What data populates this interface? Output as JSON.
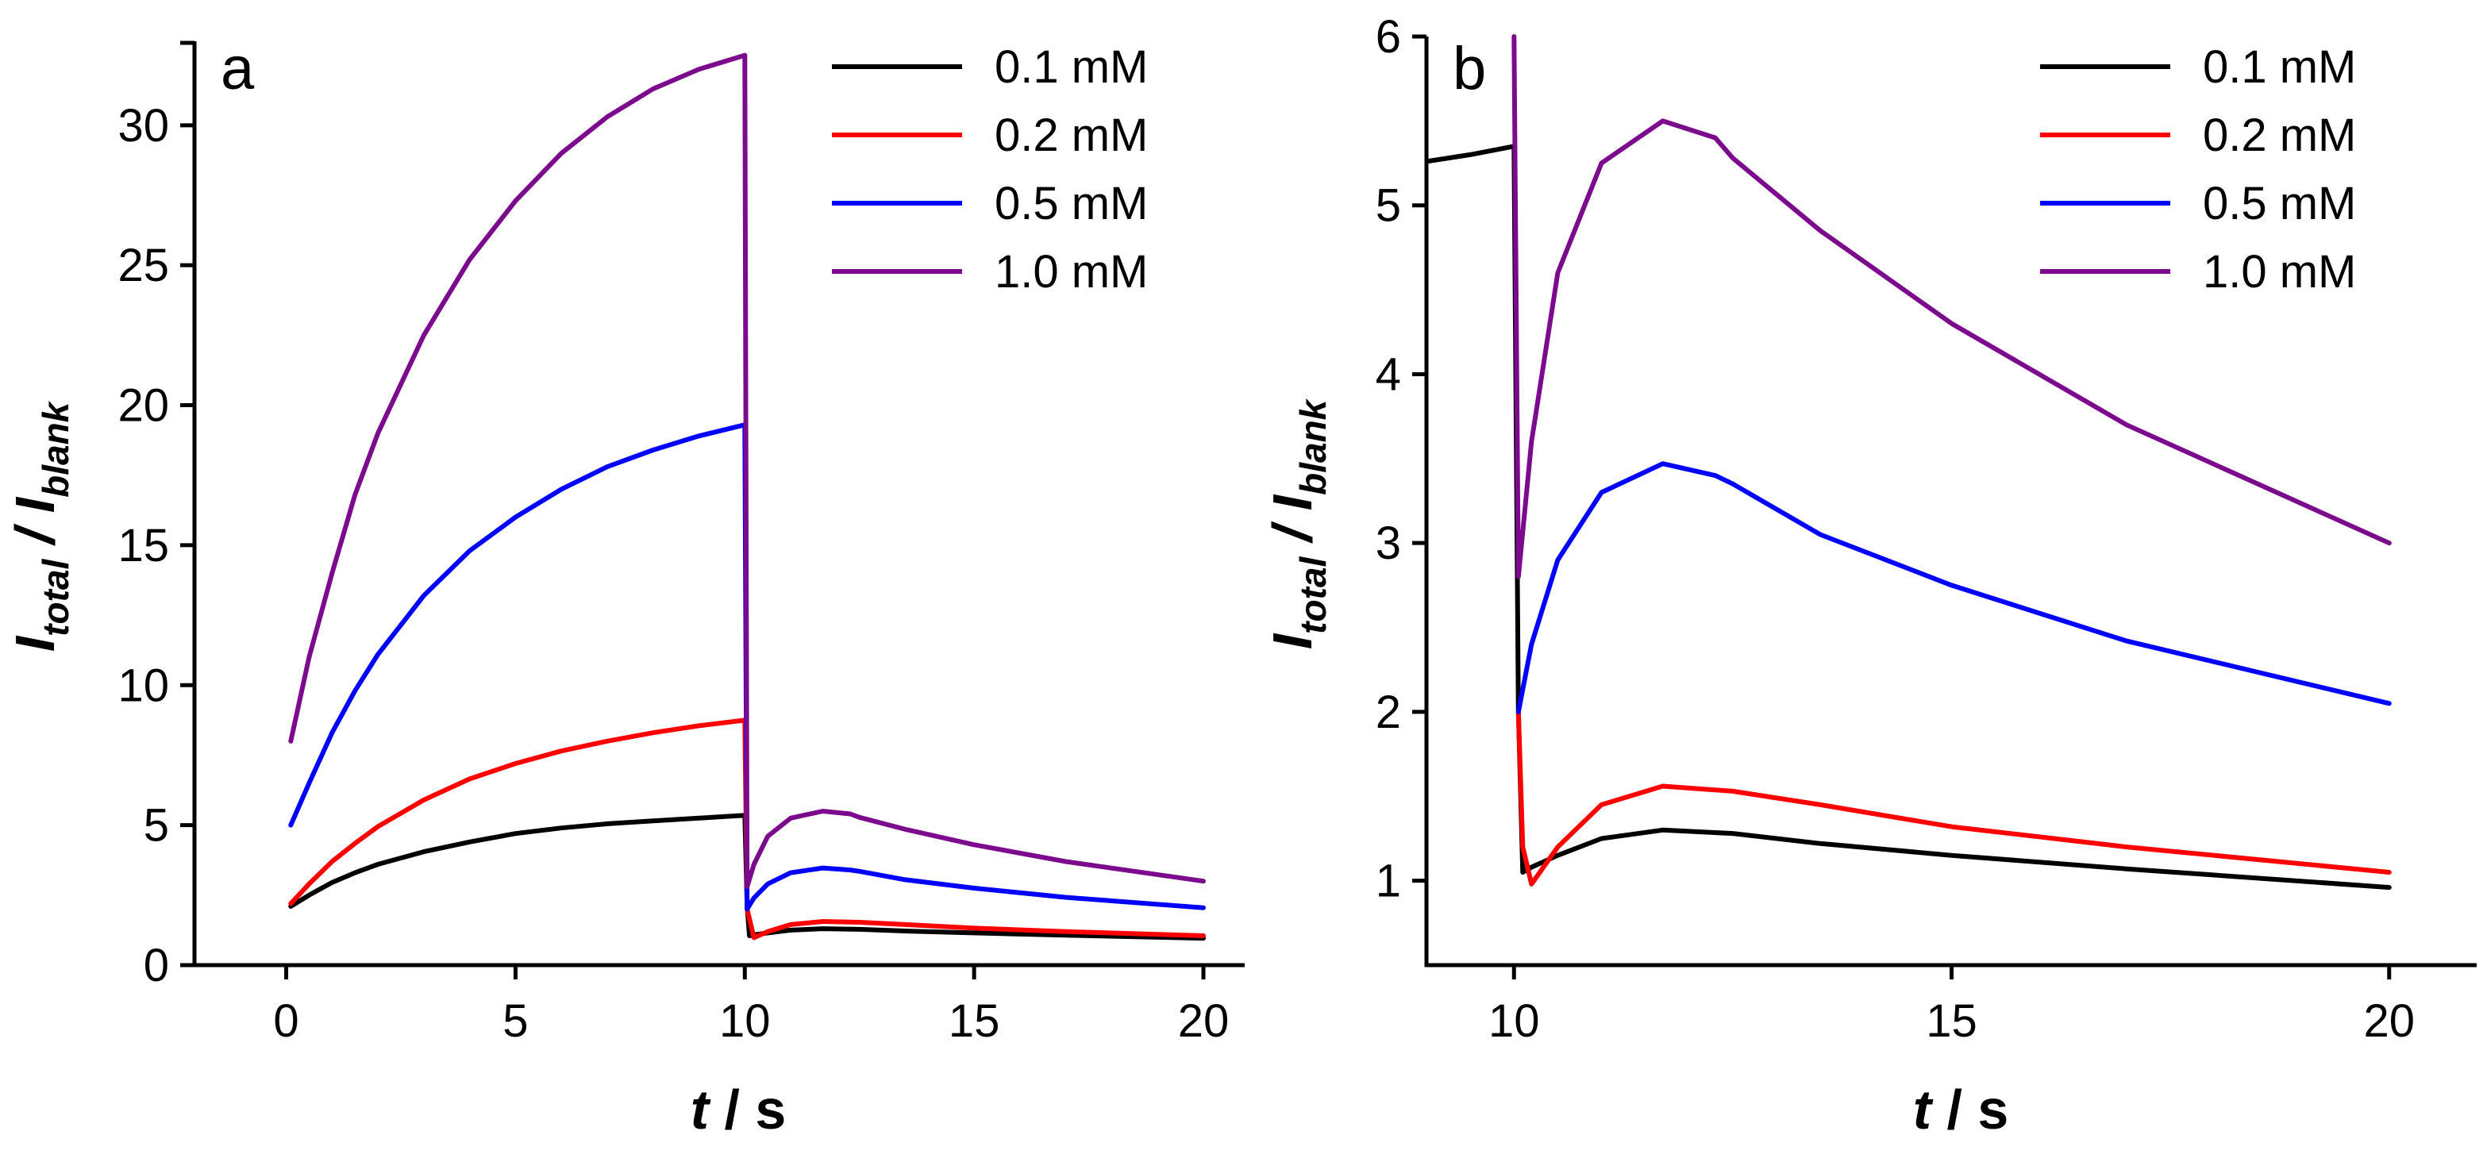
{
  "chart_data": [
    {
      "type": "line",
      "panel_label": "a",
      "xlabel": {
        "var": "t",
        "unit": "s"
      },
      "ylabel": {
        "main": "I",
        "sub_num": "total",
        "sep": " / ",
        "den": "I",
        "sub_den": "blank"
      },
      "xlim": [
        -2,
        20.9
      ],
      "ylim": [
        0,
        33
      ],
      "xticks": [
        0,
        5,
        10,
        15,
        20
      ],
      "yticks": [
        0,
        5,
        10,
        15,
        20,
        25,
        30
      ],
      "legend_position": "top-right",
      "series": [
        {
          "name": "0.1 mM",
          "color": "#000000",
          "points": [
            [
              0.1,
              2.1
            ],
            [
              0.5,
              2.5
            ],
            [
              1,
              2.95
            ],
            [
              1.5,
              3.3
            ],
            [
              2,
              3.6
            ],
            [
              3,
              4.05
            ],
            [
              4,
              4.4
            ],
            [
              5,
              4.7
            ],
            [
              6,
              4.9
            ],
            [
              7,
              5.05
            ],
            [
              8,
              5.15
            ],
            [
              9,
              5.25
            ],
            [
              10,
              5.35
            ],
            [
              10.05,
              2.1
            ],
            [
              10.1,
              1.05
            ],
            [
              10.2,
              1.08
            ],
            [
              10.5,
              1.15
            ],
            [
              11,
              1.25
            ],
            [
              11.7,
              1.3
            ],
            [
              12.5,
              1.28
            ],
            [
              13.5,
              1.22
            ],
            [
              15,
              1.15
            ],
            [
              17,
              1.07
            ],
            [
              20,
              0.96
            ]
          ]
        },
        {
          "name": "0.2 mM",
          "color": "#ff0000",
          "points": [
            [
              0.1,
              2.2
            ],
            [
              0.5,
              2.9
            ],
            [
              1,
              3.7
            ],
            [
              1.5,
              4.35
            ],
            [
              2,
              4.95
            ],
            [
              3,
              5.9
            ],
            [
              4,
              6.65
            ],
            [
              5,
              7.2
            ],
            [
              6,
              7.65
            ],
            [
              7,
              8.0
            ],
            [
              8,
              8.3
            ],
            [
              9,
              8.55
            ],
            [
              10,
              8.75
            ],
            [
              10.05,
              2.0
            ],
            [
              10.2,
              0.98
            ],
            [
              10.5,
              1.2
            ],
            [
              11,
              1.45
            ],
            [
              11.7,
              1.56
            ],
            [
              12.5,
              1.53
            ],
            [
              13.5,
              1.45
            ],
            [
              15,
              1.32
            ],
            [
              17,
              1.2
            ],
            [
              20,
              1.05
            ]
          ]
        },
        {
          "name": "0.5 mM",
          "color": "#0000ff",
          "points": [
            [
              0.1,
              5.0
            ],
            [
              0.5,
              6.5
            ],
            [
              1,
              8.3
            ],
            [
              1.5,
              9.8
            ],
            [
              2,
              11.1
            ],
            [
              3,
              13.2
            ],
            [
              4,
              14.8
            ],
            [
              5,
              16.0
            ],
            [
              6,
              17.0
            ],
            [
              7,
              17.8
            ],
            [
              8,
              18.4
            ],
            [
              9,
              18.9
            ],
            [
              10,
              19.3
            ],
            [
              10.05,
              2.0
            ],
            [
              10.2,
              2.4
            ],
            [
              10.5,
              2.9
            ],
            [
              11,
              3.3
            ],
            [
              11.7,
              3.47
            ],
            [
              12.3,
              3.4
            ],
            [
              12.5,
              3.35
            ],
            [
              13.5,
              3.05
            ],
            [
              15,
              2.75
            ],
            [
              17,
              2.42
            ],
            [
              20,
              2.05
            ]
          ]
        },
        {
          "name": "1.0 mM",
          "color": "#7b0a8c",
          "points": [
            [
              0.1,
              8.0
            ],
            [
              0.5,
              11.0
            ],
            [
              1,
              14.0
            ],
            [
              1.5,
              16.8
            ],
            [
              2,
              19.0
            ],
            [
              3,
              22.5
            ],
            [
              4,
              25.2
            ],
            [
              5,
              27.3
            ],
            [
              6,
              29.0
            ],
            [
              7,
              30.3
            ],
            [
              8,
              31.3
            ],
            [
              9,
              32.0
            ],
            [
              10,
              32.5
            ],
            [
              10.05,
              2.8
            ],
            [
              10.2,
              3.6
            ],
            [
              10.5,
              4.6
            ],
            [
              11,
              5.25
            ],
            [
              11.7,
              5.5
            ],
            [
              12.3,
              5.4
            ],
            [
              12.5,
              5.28
            ],
            [
              13.5,
              4.85
            ],
            [
              15,
              4.3
            ],
            [
              17,
              3.7
            ],
            [
              20,
              3.0
            ]
          ]
        }
      ]
    },
    {
      "type": "line",
      "panel_label": "b",
      "xlabel": {
        "var": "t",
        "unit": "s"
      },
      "ylabel": {
        "main": "I",
        "sub_num": "total",
        "sep": " / ",
        "den": "I",
        "sub_den": "blank"
      },
      "xlim": [
        9.0,
        21.0
      ],
      "ylim": [
        0.5,
        6
      ],
      "xticks": [
        10,
        15,
        20
      ],
      "yticks": [
        1,
        2,
        3,
        4,
        5,
        6
      ],
      "legend_position": "top-right",
      "series": [
        {
          "name": "0.1 mM",
          "color": "#000000",
          "points": [
            [
              9.0,
              5.26
            ],
            [
              9.5,
              5.3
            ],
            [
              9.9,
              5.34
            ],
            [
              10.0,
              5.35
            ],
            [
              10.05,
              2.0
            ],
            [
              10.1,
              1.05
            ],
            [
              10.2,
              1.08
            ],
            [
              10.5,
              1.15
            ],
            [
              11,
              1.25
            ],
            [
              11.7,
              1.3
            ],
            [
              12.5,
              1.28
            ],
            [
              13.5,
              1.22
            ],
            [
              15,
              1.15
            ],
            [
              17,
              1.07
            ],
            [
              20,
              0.96
            ]
          ]
        },
        {
          "name": "0.2 mM",
          "color": "#ff0000",
          "points": [
            [
              10.05,
              2.0
            ],
            [
              10.1,
              1.2
            ],
            [
              10.2,
              0.98
            ],
            [
              10.5,
              1.2
            ],
            [
              11,
              1.45
            ],
            [
              11.7,
              1.56
            ],
            [
              12.5,
              1.53
            ],
            [
              13.5,
              1.45
            ],
            [
              15,
              1.32
            ],
            [
              17,
              1.2
            ],
            [
              20,
              1.05
            ]
          ]
        },
        {
          "name": "0.5 mM",
          "color": "#0000ff",
          "points": [
            [
              10.05,
              2.0
            ],
            [
              10.2,
              2.4
            ],
            [
              10.5,
              2.9
            ],
            [
              11,
              3.3
            ],
            [
              11.7,
              3.47
            ],
            [
              12.3,
              3.4
            ],
            [
              12.5,
              3.35
            ],
            [
              13.5,
              3.05
            ],
            [
              15,
              2.75
            ],
            [
              17,
              2.42
            ],
            [
              20,
              2.05
            ]
          ]
        },
        {
          "name": "1.0 mM",
          "color": "#7b0a8c",
          "points": [
            [
              10.0,
              6.0
            ],
            [
              10.05,
              2.8
            ],
            [
              10.2,
              3.6
            ],
            [
              10.5,
              4.6
            ],
            [
              11,
              5.25
            ],
            [
              11.7,
              5.5
            ],
            [
              12.3,
              5.4
            ],
            [
              12.5,
              5.28
            ],
            [
              13.5,
              4.85
            ],
            [
              15,
              4.3
            ],
            [
              17,
              3.7
            ],
            [
              20,
              3.0
            ]
          ]
        }
      ]
    }
  ]
}
